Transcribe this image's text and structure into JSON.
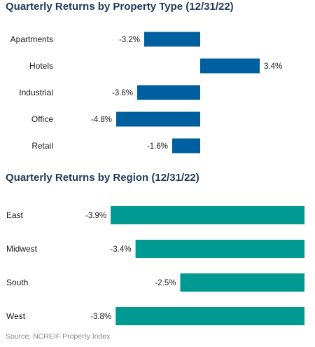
{
  "chart_data": [
    {
      "type": "bar",
      "orientation": "horizontal",
      "title": "Quarterly Returns by Property Type (12/31/22)",
      "categories": [
        "Apartments",
        "Hotels",
        "Industrial",
        "Office",
        "Retail"
      ],
      "values": [
        -3.2,
        3.4,
        -3.6,
        -4.8,
        -1.6
      ],
      "labels": [
        "-3.2%",
        "3.4%",
        "-3.6%",
        "-4.8%",
        "-1.6%"
      ],
      "unit": "%",
      "color": "#005f9e",
      "grid": false
    },
    {
      "type": "bar",
      "orientation": "horizontal",
      "title": "Quarterly Returns by Region (12/31/22)",
      "categories": [
        "East",
        "Midwest",
        "South",
        "West"
      ],
      "values": [
        -3.9,
        -3.4,
        -2.5,
        -3.8
      ],
      "labels": [
        "-3.9%",
        "-3.4%",
        "-2.5%",
        "-3.8%"
      ],
      "unit": "%",
      "color": "#009a92",
      "grid": false
    }
  ],
  "source": "Source: NCREIF Property Index"
}
